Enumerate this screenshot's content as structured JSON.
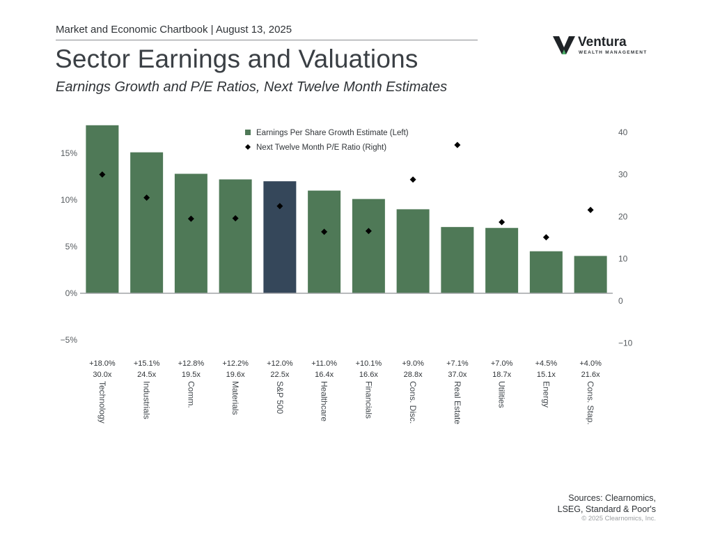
{
  "header": {
    "chartbook": "Market and Economic Chartbook | August 13, 2025",
    "title": "Sector Earnings and Valuations",
    "subtitle": "Earnings Growth and P/E Ratios, Next Twelve Month Estimates"
  },
  "logo": {
    "name": "Ventura",
    "tagline": "WEALTH MANAGEMENT",
    "icon": "v-logo-icon"
  },
  "colors": {
    "bar": "#4f7957",
    "highlight_bar": "#35475a",
    "marker": "#000000",
    "axis": "#a0a3a6",
    "text": "#2f3337"
  },
  "chart_data": {
    "type": "bar",
    "categories": [
      "Technology",
      "Industrials",
      "Comm.",
      "Materials",
      "S&P 500",
      "Healthcare",
      "Financials",
      "Cons. Disc.",
      "Real Estate",
      "Utilities",
      "Energy",
      "Cons. Stap."
    ],
    "highlight_category": "S&P 500",
    "series": [
      {
        "name": "Earnings Per Share Growth Estimate (Left)",
        "type": "bar",
        "axis": "left",
        "values": [
          18.0,
          15.1,
          12.8,
          12.2,
          12.0,
          11.0,
          10.1,
          9.0,
          7.1,
          7.0,
          4.5,
          4.0
        ]
      },
      {
        "name": "Next Twelve Month P/E Ratio (Right)",
        "type": "scatter",
        "marker": "diamond",
        "axis": "right",
        "values": [
          30.0,
          24.5,
          19.5,
          19.6,
          22.5,
          16.4,
          16.6,
          28.8,
          37.0,
          18.7,
          15.1,
          21.6
        ]
      }
    ],
    "growth_labels": [
      "+18.0%",
      "+15.1%",
      "+12.8%",
      "+12.2%",
      "+12.0%",
      "+11.0%",
      "+10.1%",
      "+9.0%",
      "+7.1%",
      "+7.0%",
      "+4.5%",
      "+4.0%"
    ],
    "pe_labels": [
      "30.0x",
      "24.5x",
      "19.5x",
      "19.6x",
      "22.5x",
      "16.4x",
      "16.6x",
      "28.8x",
      "37.0x",
      "18.7x",
      "15.1x",
      "21.6x"
    ],
    "left_axis": {
      "ticks": [
        -5,
        0,
        5,
        10,
        15
      ],
      "tick_labels": [
        "−5%",
        "0%",
        "5%",
        "10%",
        "15%"
      ],
      "ylim": [
        -5,
        18
      ]
    },
    "right_axis": {
      "ticks": [
        -10,
        0,
        10,
        20,
        30,
        40
      ],
      "tick_labels": [
        "−10",
        "0",
        "10",
        "20",
        "30",
        "40"
      ],
      "ylim": [
        -10,
        40
      ]
    },
    "title": "Sector Earnings and Valuations",
    "xlabel": "",
    "ylabel_left": "",
    "ylabel_right": "",
    "grid": false,
    "legend_position": "top-center"
  },
  "footer": {
    "sources_line1": "Sources: Clearnomics,",
    "sources_line2": "LSEG, Standard & Poor's",
    "copyright": "© 2025 Clearnomics, Inc."
  }
}
